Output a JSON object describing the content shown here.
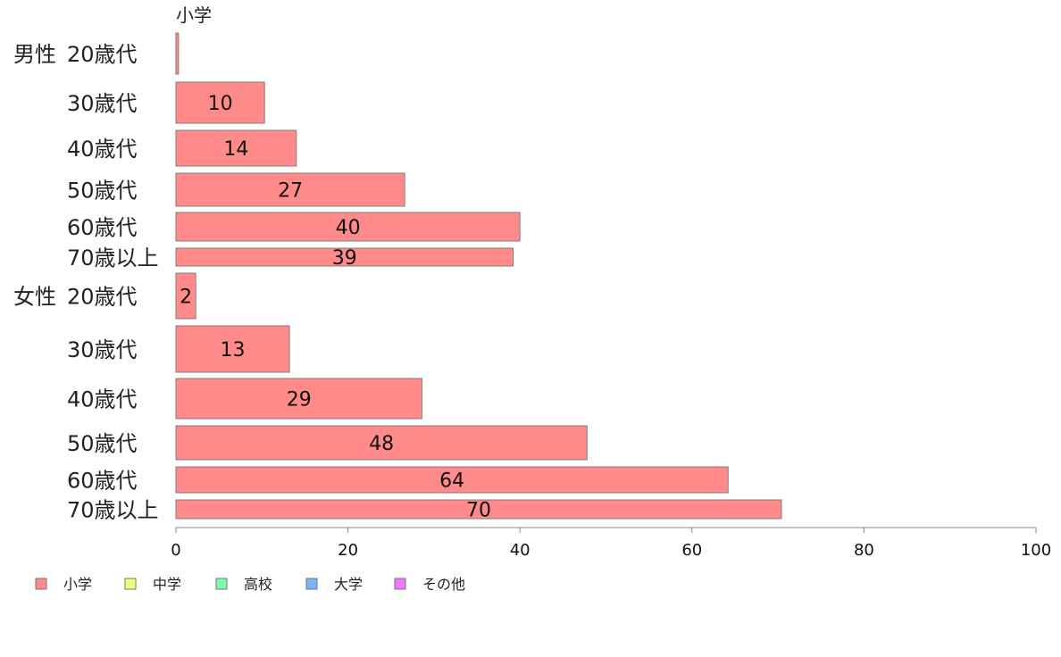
{
  "chart_data": {
    "type": "bar",
    "orientation": "horizontal",
    "series_title": "小学",
    "groups": [
      {
        "label": "男性",
        "first_index": 0
      },
      {
        "label": "女性",
        "first_index": 6
      }
    ],
    "categories": [
      "20歳代",
      "30歳代",
      "40歳代",
      "50歳代",
      "60歳代",
      "70歳以上",
      "20歳代",
      "30歳代",
      "40歳代",
      "50歳代",
      "60歳代",
      "70歳以上"
    ],
    "series": [
      {
        "name": "小学",
        "color": "#ff8a8a",
        "values": [
          0.3,
          10.3,
          14,
          26.6,
          40,
          39.2,
          2.3,
          13.2,
          28.6,
          47.8,
          64.2,
          70.4
        ],
        "labels": [
          "",
          "10",
          "14",
          "27",
          "40",
          "39",
          "2",
          "13",
          "29",
          "48",
          "64",
          "70"
        ]
      }
    ],
    "xlim": [
      0,
      100
    ],
    "xticks": [
      0,
      20,
      40,
      60,
      80,
      100
    ],
    "grid": false,
    "legend": {
      "placement": "bottom-left",
      "items": [
        {
          "label": "小学",
          "color": "#ff8a8a"
        },
        {
          "label": "中学",
          "color": "#eeff7a"
        },
        {
          "label": "高校",
          "color": "#7affb0"
        },
        {
          "label": "大学",
          "color": "#7ab4ff"
        },
        {
          "label": "その他",
          "color": "#ee7aff"
        }
      ]
    }
  }
}
